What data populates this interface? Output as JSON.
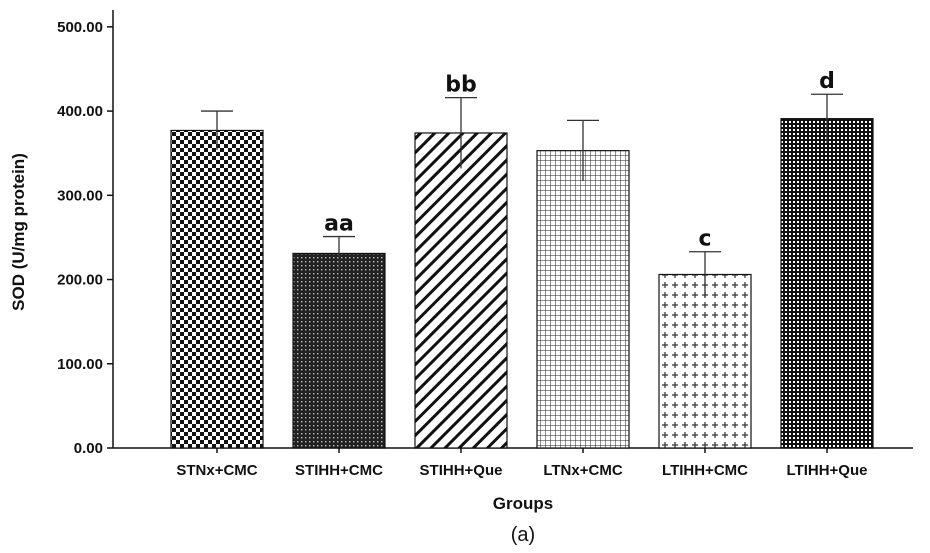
{
  "panel_label": "(a)",
  "chart_data": {
    "type": "bar",
    "title": "",
    "xlabel": "Groups",
    "ylabel": "SOD (U/mg protein)",
    "ylim": [
      0,
      520
    ],
    "yticks": [
      "0.00",
      "100.00",
      "200.00",
      "300.00",
      "400.00",
      "500.00"
    ],
    "ytick_values": [
      0,
      100,
      200,
      300,
      400,
      500
    ],
    "categories": [
      "STNx+CMC",
      "STIHH+CMC",
      "STIHH+Que",
      "LTNx+CMC",
      "LTIHH+CMC",
      "LTIHH+Que"
    ],
    "values": [
      377,
      231,
      374,
      353,
      206,
      391
    ],
    "errors": [
      23,
      20,
      42,
      36,
      27,
      29
    ],
    "significance_labels": [
      "",
      "aa",
      "bb",
      "",
      "c",
      "d"
    ],
    "patterns": [
      "checker",
      "fine-dots",
      "diagonal",
      "grid",
      "crosses",
      "dense-grid"
    ],
    "grid": false,
    "legend": "none"
  }
}
